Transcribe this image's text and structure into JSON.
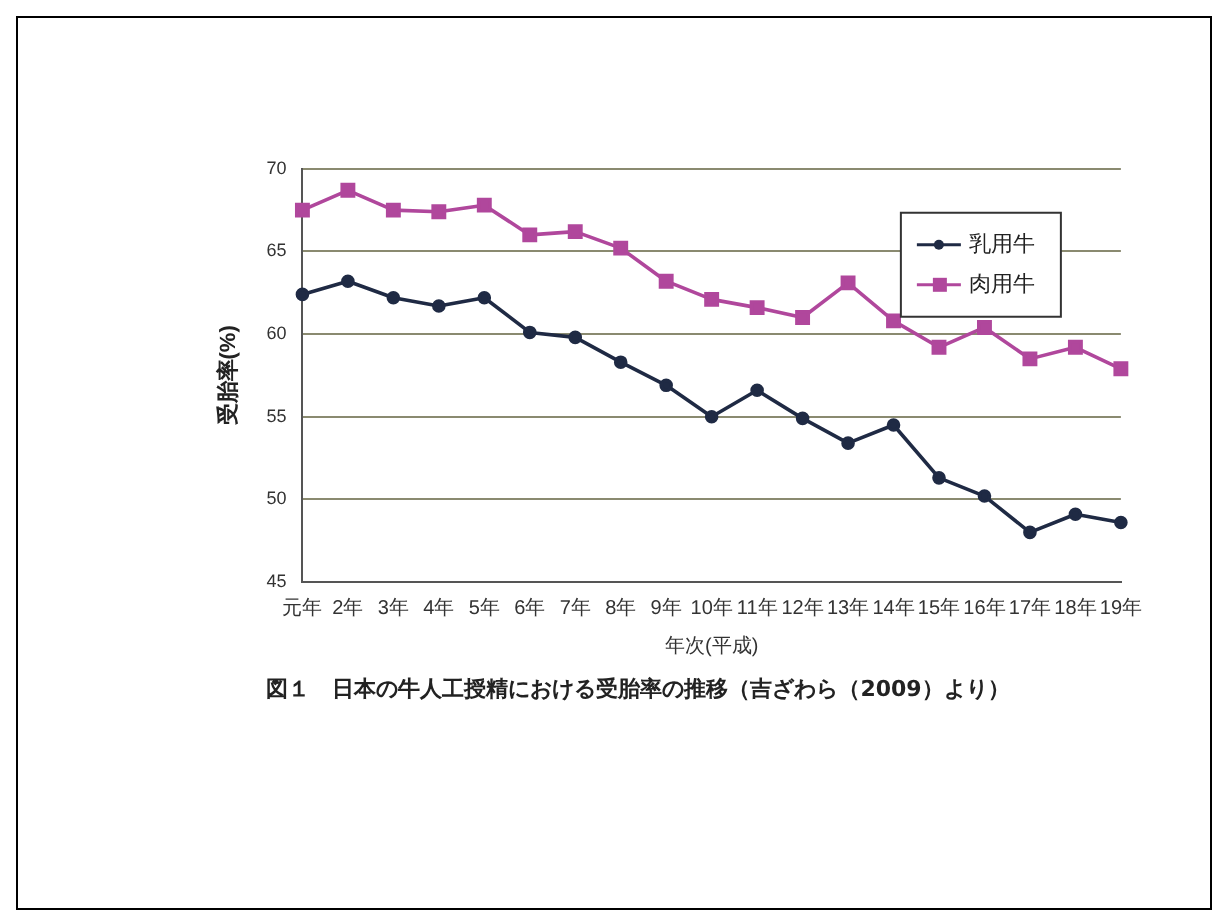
{
  "chart_data": {
    "type": "line",
    "xlabel": "年次(平成)",
    "ylabel": "受胎率(%)",
    "categories": [
      "元年",
      "2年",
      "3年",
      "4年",
      "5年",
      "6年",
      "7年",
      "8年",
      "9年",
      "10年",
      "11年",
      "12年",
      "13年",
      "14年",
      "15年",
      "16年",
      "17年",
      "18年",
      "19年"
    ],
    "series": [
      {
        "name": "乳用牛",
        "color": "#1f2a44",
        "marker": "circle",
        "values": [
          62.4,
          63.2,
          62.2,
          61.7,
          62.2,
          60.1,
          59.8,
          58.3,
          56.9,
          55.0,
          56.6,
          54.9,
          53.4,
          54.5,
          51.3,
          50.2,
          48.0,
          49.1,
          48.6
        ]
      },
      {
        "name": "肉用牛",
        "color": "#b0479c",
        "marker": "square",
        "values": [
          67.5,
          68.7,
          67.5,
          67.4,
          67.8,
          66.0,
          66.2,
          65.2,
          63.2,
          62.1,
          61.6,
          61.0,
          63.1,
          60.8,
          59.2,
          60.4,
          58.5,
          59.2,
          57.9
        ]
      }
    ],
    "ylim": [
      45,
      70
    ],
    "yticks": [
      45,
      50,
      55,
      60,
      65,
      70
    ],
    "grid": "y",
    "legend": "top right",
    "line_style": "solid",
    "annotations": [
      "図１　日本の牛人工授精における受胎率の推移（吉ざわら（2009）より）"
    ]
  }
}
